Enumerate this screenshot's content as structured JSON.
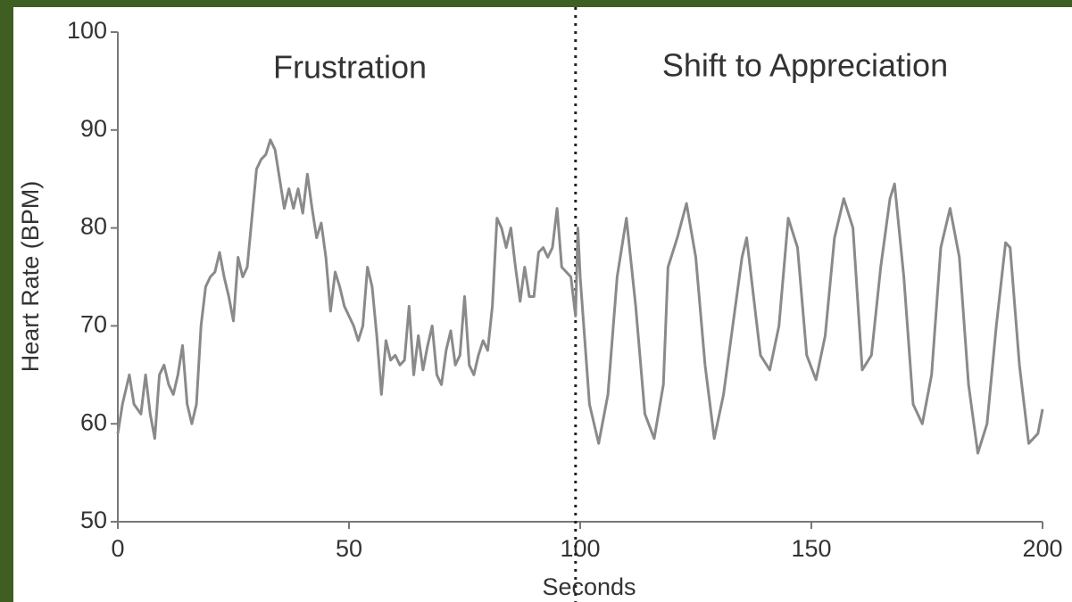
{
  "chart_data": {
    "type": "line",
    "x_label": "Seconds",
    "y_label": "Heart Rate (BPM)",
    "annotations": [
      "Frustration",
      "Shift to Appreciation"
    ],
    "divider_x": 99,
    "x": [
      0,
      1,
      2.5,
      3.5,
      5,
      6,
      7,
      8,
      9,
      10,
      11,
      12,
      13,
      14,
      15,
      16,
      17,
      18,
      19,
      20,
      21,
      22,
      23,
      24,
      25,
      26,
      27,
      28,
      29,
      30,
      31,
      32,
      33,
      34,
      35,
      36,
      37,
      38,
      39,
      40,
      41,
      42,
      43,
      44,
      45,
      46,
      47,
      48,
      49,
      50,
      51,
      52,
      53,
      54,
      55,
      56,
      57,
      58,
      59,
      60,
      61,
      62,
      63,
      64,
      65,
      66,
      67,
      68,
      69,
      70,
      71,
      72,
      73,
      74,
      75,
      76,
      77,
      78,
      79,
      80,
      81,
      82,
      83,
      84,
      85,
      86,
      87,
      88,
      89,
      90,
      91,
      92,
      93,
      94,
      95,
      96,
      97,
      98,
      99,
      99.5,
      100,
      102,
      104,
      106,
      108,
      110,
      112,
      114,
      116,
      118,
      119,
      121,
      123,
      125,
      127,
      129,
      131,
      133,
      135,
      136,
      138,
      139,
      141,
      143,
      145,
      147,
      149,
      151,
      153,
      155,
      157,
      159,
      161,
      163,
      165,
      167,
      168,
      170,
      172,
      174,
      176,
      178,
      180,
      182,
      184,
      186,
      188,
      190,
      192,
      193,
      195,
      197,
      199,
      200
    ],
    "series": [
      {
        "color": "#8a8a8a",
        "values": [
          59,
          62,
          65,
          62,
          61,
          65,
          61,
          58.5,
          65,
          66,
          64,
          63,
          65,
          68,
          62,
          60,
          62,
          70,
          74,
          75,
          75.5,
          77.5,
          75,
          73,
          70.5,
          77,
          75,
          76,
          81,
          86,
          87,
          87.5,
          89,
          88,
          85,
          82,
          84,
          82,
          84,
          81.5,
          85.5,
          82,
          79,
          80.5,
          77,
          71.5,
          75.5,
          74,
          72,
          71,
          70,
          68.5,
          70,
          76,
          74,
          69,
          63,
          68.5,
          66.5,
          67,
          66,
          66.5,
          72,
          65,
          69,
          65.5,
          68,
          70,
          65,
          64,
          67.5,
          69.5,
          66,
          67,
          73,
          66,
          65,
          67,
          68.5,
          67.5,
          72,
          81,
          80,
          78,
          80,
          76,
          72.5,
          76,
          73,
          73,
          77.5,
          78,
          77,
          78,
          82,
          76,
          75.5,
          75,
          71,
          80,
          75,
          62,
          58,
          63,
          75,
          81,
          72,
          61,
          58.5,
          64,
          76,
          79,
          82.5,
          77,
          66,
          58.5,
          63,
          70,
          77,
          79,
          71,
          67,
          65.5,
          70,
          81,
          78,
          67,
          64.5,
          69,
          79,
          83,
          80,
          65.5,
          67,
          76,
          83,
          84.5,
          75,
          62,
          60,
          65,
          78,
          82,
          77,
          64,
          57,
          60,
          70,
          78.5,
          78,
          66,
          58,
          59,
          61.5
        ]
      }
    ],
    "xlim": [
      0,
      200
    ],
    "ylim": [
      50,
      100
    ],
    "xticks": [
      0,
      50,
      100,
      150,
      200
    ],
    "yticks": [
      50,
      60,
      70,
      80,
      90,
      100
    ]
  }
}
